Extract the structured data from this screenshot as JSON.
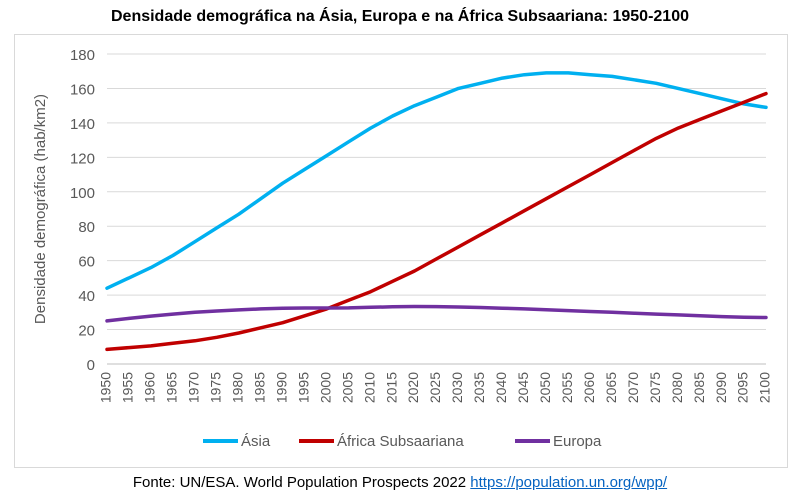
{
  "source_text": "Fonte: UN/ESA. World Population Prospects 2022",
  "source_link": "https://population.un.org/wpp/",
  "chart_data": {
    "type": "line",
    "title": "Densidade demográfica na Ásia, Europa e na África Subsaariana: 1950-2100",
    "xlabel": "",
    "ylabel": "Densidade demográfica (hab/km2)",
    "xlim": [
      1950,
      2100
    ],
    "ylim": [
      0,
      180
    ],
    "yticks": [
      0,
      20,
      40,
      60,
      80,
      100,
      120,
      140,
      160,
      180
    ],
    "xticks": [
      1950,
      1955,
      1960,
      1965,
      1970,
      1975,
      1980,
      1985,
      1990,
      1995,
      2000,
      2005,
      2010,
      2015,
      2020,
      2025,
      2030,
      2035,
      2040,
      2045,
      2050,
      2055,
      2060,
      2065,
      2070,
      2075,
      2080,
      2085,
      2090,
      2095,
      2100
    ],
    "grid": "horizontal",
    "legend": "bottom",
    "x": [
      1950,
      1955,
      1960,
      1965,
      1970,
      1975,
      1980,
      1985,
      1990,
      1995,
      2000,
      2005,
      2010,
      2015,
      2020,
      2025,
      2030,
      2035,
      2040,
      2045,
      2050,
      2055,
      2060,
      2065,
      2070,
      2075,
      2080,
      2085,
      2090,
      2095,
      2100
    ],
    "series": [
      {
        "name": "Ásia",
        "color": "#00b0f0",
        "values": [
          44,
          50,
          56,
          63,
          71,
          79,
          87,
          96,
          105,
          113,
          121,
          129,
          137,
          144,
          150,
          155,
          160,
          163,
          166,
          168,
          169,
          169,
          168,
          167,
          165,
          163,
          160,
          157,
          154,
          151,
          149
        ]
      },
      {
        "name": "África Subsaariana",
        "color": "#c00000",
        "values": [
          8.5,
          9.5,
          10.5,
          12,
          13.5,
          15.5,
          18,
          21,
          24,
          28,
          32,
          37,
          42,
          48,
          54,
          61,
          68,
          75,
          82,
          89,
          96,
          103,
          110,
          117,
          124,
          131,
          137,
          142,
          147,
          152,
          157
        ]
      },
      {
        "name": "Europa",
        "color": "#7030a0",
        "values": [
          25,
          26.5,
          27.8,
          29,
          30,
          30.8,
          31.4,
          32,
          32.4,
          32.5,
          32.5,
          32.6,
          32.9,
          33.2,
          33.4,
          33.3,
          33.1,
          32.8,
          32.4,
          32,
          31.5,
          31,
          30.5,
          30,
          29.5,
          29,
          28.5,
          28,
          27.5,
          27.2,
          27
        ]
      }
    ]
  }
}
